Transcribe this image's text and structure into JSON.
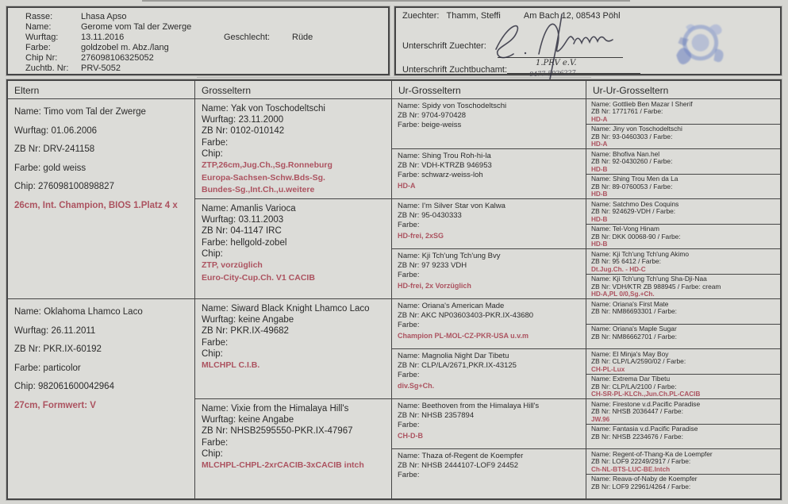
{
  "colors": {
    "red_text": "#ac5360",
    "stamp_blue": "#7b8fc6",
    "paper": "#d6d6d2"
  },
  "header": {
    "left": {
      "fields": [
        {
          "label": "Rasse:",
          "value": "Lhasa Apso"
        },
        {
          "label": "Name:",
          "value": "Gerome vom Tal der Zwerge"
        },
        {
          "label": "Wurftag:",
          "value": "13.11.2016"
        },
        {
          "label": "Farbe:",
          "value": "goldzobel m. Abz./lang"
        },
        {
          "label": "Chip Nr:",
          "value": "276098106325052"
        },
        {
          "label": "Zuchtb. Nr:",
          "value": "PRV-5052"
        }
      ],
      "sex_label": "Geschlecht:",
      "sex_value": "Rüde"
    },
    "right": {
      "breeder_label": "Zuechter:",
      "breeder_name": "Thamm, Steffi",
      "breeder_address": "Am Bach 12, 08543 Pöhl",
      "signature_label": "Unterschrift Zuechter:",
      "signature_club": "1.PRV e.V.",
      "signature_number": "0477-5026227",
      "office_label": "Unterschrift Zuchtbuchamt:"
    }
  },
  "pedigree": {
    "columns": [
      {
        "title": "Eltern",
        "cells": [
          {
            "lines": [
              {
                "t": "Name: Timo vom Tal der Zwerge",
                "red": false
              },
              {
                "t": "Wurftag: 01.06.2006",
                "red": false
              },
              {
                "t": "ZB Nr: DRV-241158",
                "red": false
              },
              {
                "t": "Farbe: gold weiss",
                "red": false
              },
              {
                "t": "Chip: 276098100898827",
                "red": false
              },
              {
                "t": "26cm, Int. Champion, BIOS 1.Platz 4 x",
                "red": true
              }
            ]
          },
          {
            "lines": [
              {
                "t": "Name: Oklahoma Lhamco Laco",
                "red": false
              },
              {
                "t": "Wurftag: 26.11.2011",
                "red": false
              },
              {
                "t": "ZB Nr: PKR.IX-60192",
                "red": false
              },
              {
                "t": "Farbe: particolor",
                "red": false
              },
              {
                "t": "Chip: 982061600042964",
                "red": false
              },
              {
                "t": "27cm, Formwert: V",
                "red": true
              }
            ]
          }
        ]
      },
      {
        "title": "Grosseltern",
        "cells": [
          {
            "lines": [
              {
                "t": "Name: Yak von Toschodeltschi",
                "red": false
              },
              {
                "t": "Wurftag: 23.11.2000",
                "red": false
              },
              {
                "t": "ZB Nr: 0102-010142",
                "red": false
              },
              {
                "t": "Farbe:",
                "red": false
              },
              {
                "t": "Chip:",
                "red": false
              },
              {
                "t": "ZTP,26cm,Jug.Ch.,Sg.Ronneburg",
                "red": true
              },
              {
                "t": "Europa-Sachsen-Schw.Bds-Sg.",
                "red": true
              },
              {
                "t": "Bundes-Sg.,Int.Ch.,u.weitere",
                "red": true
              }
            ]
          },
          {
            "lines": [
              {
                "t": "Name: Amanlis Varioca",
                "red": false
              },
              {
                "t": "Wurftag: 03.11.2003",
                "red": false
              },
              {
                "t": "ZB Nr: 04-1147 IRC",
                "red": false
              },
              {
                "t": "Farbe: hellgold-zobel",
                "red": false
              },
              {
                "t": "Chip:",
                "red": false
              },
              {
                "t": "ZTP, vorzüglich",
                "red": true
              },
              {
                "t": "Euro-City-Cup.Ch. V1 CACIB",
                "red": true
              }
            ]
          },
          {
            "lines": [
              {
                "t": "Name: Siward Black Knight Lhamco Laco",
                "red": false
              },
              {
                "t": "Wurftag: keine Angabe",
                "red": false
              },
              {
                "t": "ZB Nr: PKR.IX-49682",
                "red": false
              },
              {
                "t": "Farbe:",
                "red": false
              },
              {
                "t": "Chip:",
                "red": false
              },
              {
                "t": "MLCHPL C.I.B.",
                "red": true
              }
            ]
          },
          {
            "lines": [
              {
                "t": "Name: Vixie from the Himalaya Hill's",
                "red": false
              },
              {
                "t": "Wurftag: keine Angabe",
                "red": false
              },
              {
                "t": "ZB Nr: NHSB2595550-PKR.IX-47967",
                "red": false
              },
              {
                "t": "Farbe:",
                "red": false
              },
              {
                "t": "Chip:",
                "red": false
              },
              {
                "t": "MLCHPL-CHPL-2xrCACIB-3xCACIB intch",
                "red": true
              }
            ]
          }
        ]
      },
      {
        "title": "Ur-Grosseltern",
        "cells": [
          {
            "lines": [
              {
                "t": "Name: Spidy von Toschodeltschi",
                "red": false
              },
              {
                "t": "ZB Nr: 9704-970428",
                "red": false
              },
              {
                "t": "Farbe: beige-weiss",
                "red": false
              }
            ]
          },
          {
            "lines": [
              {
                "t": "Name: Shing Trou Roh-hi-la",
                "red": false
              },
              {
                "t": "ZB Nr: VDH-KTRZB 946953",
                "red": false
              },
              {
                "t": "Farbe: schwarz-weiss-loh",
                "red": false
              },
              {
                "t": "HD-A",
                "red": true
              }
            ]
          },
          {
            "lines": [
              {
                "t": "Name: I'm Silver Star von Kalwa",
                "red": false
              },
              {
                "t": "ZB Nr: 95-0430333",
                "red": false
              },
              {
                "t": "Farbe:",
                "red": false
              },
              {
                "t": "HD-frei, 2xSG",
                "red": true
              }
            ]
          },
          {
            "lines": [
              {
                "t": "Name: Kji Tch'ung Tch'ung Bvy",
                "red": false
              },
              {
                "t": "ZB Nr: 97 9233 VDH",
                "red": false
              },
              {
                "t": "Farbe:",
                "red": false
              },
              {
                "t": "HD-frei, 2x Vorzüglich",
                "red": true
              }
            ]
          },
          {
            "lines": [
              {
                "t": "Name: Oriana's American Made",
                "red": false
              },
              {
                "t": "ZB Nr: AKC NP03603403-PKR.IX-43680",
                "red": false
              },
              {
                "t": "Farbe:",
                "red": false
              },
              {
                "t": "Champion PL-MOL-CZ-PKR-USA u.v.m",
                "red": true
              }
            ]
          },
          {
            "lines": [
              {
                "t": "Name: Magnolia Night Dar Tibetu",
                "red": false
              },
              {
                "t": "ZB Nr: CLP/LA/2671,PKR.IX-43125",
                "red": false
              },
              {
                "t": "Farbe:",
                "red": false
              },
              {
                "t": "div.Sg+Ch.",
                "red": true
              }
            ]
          },
          {
            "lines": [
              {
                "t": "Name: Beethoven from the Himalaya Hill's",
                "red": false
              },
              {
                "t": "ZB Nr: NHSB 2357894",
                "red": false
              },
              {
                "t": "Farbe:",
                "red": false
              },
              {
                "t": "CH-D-B",
                "red": true
              }
            ]
          },
          {
            "lines": [
              {
                "t": "Name: Thaza of-Regent de Koempfer",
                "red": false
              },
              {
                "t": "ZB Nr: NHSB 2444107-LOF9 24452",
                "red": false
              },
              {
                "t": "Farbe:",
                "red": false
              }
            ]
          }
        ]
      },
      {
        "title": "Ur-Ur-Grosseltern",
        "cells": [
          {
            "lines": [
              {
                "t": "Name: Gottlieb Ben Mazar I Sherif",
                "red": false
              },
              {
                "t": "ZB Nr: 1771761 / Farbe:",
                "red": false
              },
              {
                "t": "HD-A",
                "red": true
              }
            ]
          },
          {
            "lines": [
              {
                "t": "Name: Jiny von Toschodeltschi",
                "red": false
              },
              {
                "t": "ZB Nr: 93-0460303 / Farbe:",
                "red": false
              },
              {
                "t": "HD-A",
                "red": true
              }
            ]
          },
          {
            "lines": [
              {
                "t": "Name: Bhofiva Nan.hel",
                "red": false
              },
              {
                "t": "ZB Nr: 92-0430260 / Farbe:",
                "red": false
              },
              {
                "t": "HD-B",
                "red": true
              }
            ]
          },
          {
            "lines": [
              {
                "t": "Name: Shing Trou Men da La",
                "red": false
              },
              {
                "t": "ZB Nr: 89-0760053 / Farbe:",
                "red": false
              },
              {
                "t": "HD-B",
                "red": true
              }
            ]
          },
          {
            "lines": [
              {
                "t": "Name: Satchmo Des Coquins",
                "red": false
              },
              {
                "t": "ZB Nr: 924629-VDH / Farbe:",
                "red": false
              },
              {
                "t": "HD-B",
                "red": true
              }
            ]
          },
          {
            "lines": [
              {
                "t": "Name: Tel-Vong Hinam",
                "red": false
              },
              {
                "t": "ZB Nr: DKK 00068-90 / Farbe:",
                "red": false
              },
              {
                "t": "HD-B",
                "red": true
              }
            ]
          },
          {
            "lines": [
              {
                "t": "Name: Kji Tch'ung Tch'ung Akimo",
                "red": false
              },
              {
                "t": "ZB Nr: 95 6412 / Farbe:",
                "red": false
              },
              {
                "t": "Dt.Jug.Ch. - HD-C",
                "red": true
              }
            ]
          },
          {
            "lines": [
              {
                "t": "Name: Kji Tch'ung Tch'ung Sha-Dji-Naa",
                "red": false
              },
              {
                "t": "ZB Nr: VDH/KTR ZB 988945 / Farbe: cream",
                "red": false
              },
              {
                "t": "HD-A,PL 0/0,Sg.+Ch.",
                "red": true
              }
            ]
          },
          {
            "lines": [
              {
                "t": "Name: Oriana's First Mate",
                "red": false
              },
              {
                "t": "ZB Nr: NM86693301 / Farbe:",
                "red": false
              }
            ]
          },
          {
            "lines": [
              {
                "t": "Name: Oriana's Maple Sugar",
                "red": false
              },
              {
                "t": "ZB Nr: NM86662701 / Farbe:",
                "red": false
              }
            ]
          },
          {
            "lines": [
              {
                "t": "Name: El Minja's May Boy",
                "red": false
              },
              {
                "t": "ZB Nr: CLP/LA/2590/02 / Farbe:",
                "red": false
              },
              {
                "t": "CH-PL-Lux",
                "red": true
              }
            ]
          },
          {
            "lines": [
              {
                "t": "Name: Extrema Dar Tibetu",
                "red": false
              },
              {
                "t": "ZB Nr: CLP/LA/2100 / Farbe:",
                "red": false
              },
              {
                "t": "CH-SR-PL-KLCh.,Jun.Ch.PL-CACIB",
                "red": true
              }
            ]
          },
          {
            "lines": [
              {
                "t": "Name: Firestone v.d.Pacific Paradise",
                "red": false
              },
              {
                "t": "ZB Nr: NHSB 2036447 / Farbe:",
                "red": false
              },
              {
                "t": "JW.96",
                "red": true
              }
            ]
          },
          {
            "lines": [
              {
                "t": "Name: Fantasia v.d.Pacific Paradise",
                "red": false
              },
              {
                "t": "ZB Nr: NHSB 2234676 / Farbe:",
                "red": false
              }
            ]
          },
          {
            "lines": [
              {
                "t": "Name: Regent-of-Thang-Ka de Loempfer",
                "red": false
              },
              {
                "t": "ZB Nr: LOF9 22249/2917 / Farbe:",
                "red": false
              },
              {
                "t": "Ch-NL-BTS-LUC-BE.Intch",
                "red": true
              }
            ]
          },
          {
            "lines": [
              {
                "t": "Name: Reava-of-Naby de Koempfer",
                "red": false
              },
              {
                "t": "ZB Nr: LOF9 22961/4264 / Farbe:",
                "red": false
              }
            ]
          }
        ]
      }
    ]
  }
}
